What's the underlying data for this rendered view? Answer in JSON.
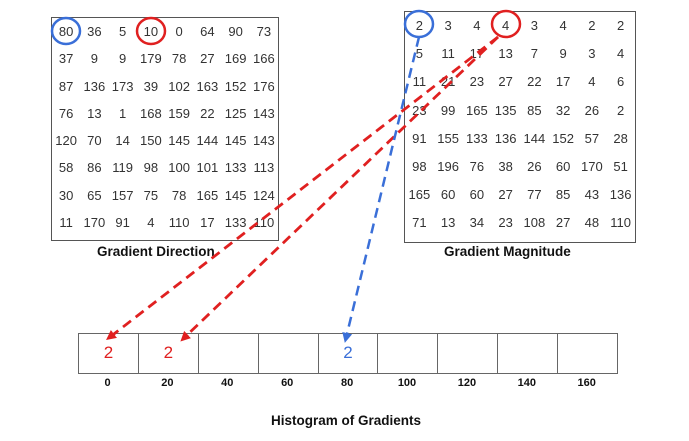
{
  "gradient_direction": {
    "caption": "Gradient Direction",
    "rows": [
      [
        "80",
        "36",
        "5",
        "10",
        "0",
        "64",
        "90",
        "73"
      ],
      [
        "37",
        "9",
        "9",
        "179",
        "78",
        "27",
        "169",
        "166"
      ],
      [
        "87",
        "136",
        "173",
        "39",
        "102",
        "163",
        "152",
        "176"
      ],
      [
        "76",
        "13",
        "1",
        "168",
        "159",
        "22",
        "125",
        "143"
      ],
      [
        "120",
        "70",
        "14",
        "150",
        "145",
        "144",
        "145",
        "143"
      ],
      [
        "58",
        "86",
        "119",
        "98",
        "100",
        "101",
        "133",
        "113"
      ],
      [
        "30",
        "65",
        "157",
        "75",
        "78",
        "165",
        "145",
        "124"
      ],
      [
        "11",
        "170",
        "91",
        "4",
        "110",
        "17",
        "133",
        "110"
      ]
    ]
  },
  "gradient_magnitude": {
    "caption": "Gradient Magnitude",
    "rows": [
      [
        "2",
        "3",
        "4",
        "4",
        "3",
        "4",
        "2",
        "2"
      ],
      [
        "5",
        "11",
        "17",
        "13",
        "7",
        "9",
        "3",
        "4"
      ],
      [
        "11",
        "21",
        "23",
        "27",
        "22",
        "17",
        "4",
        "6"
      ],
      [
        "23",
        "99",
        "165",
        "135",
        "85",
        "32",
        "26",
        "2"
      ],
      [
        "91",
        "155",
        "133",
        "136",
        "144",
        "152",
        "57",
        "28"
      ],
      [
        "98",
        "196",
        "76",
        "38",
        "26",
        "60",
        "170",
        "51"
      ],
      [
        "165",
        "60",
        "60",
        "27",
        "77",
        "85",
        "43",
        "136"
      ],
      [
        "71",
        "13",
        "34",
        "23",
        "108",
        "27",
        "48",
        "110"
      ]
    ]
  },
  "histogram": {
    "caption": "Histogram of Gradients",
    "bins": [
      "0",
      "20",
      "40",
      "60",
      "80",
      "100",
      "120",
      "140",
      "160"
    ],
    "values": [
      "2",
      "2",
      "",
      "",
      "2",
      "",
      "",
      "",
      ""
    ],
    "value_colors": [
      "#e02020",
      "#e02020",
      "",
      "",
      "#3a6fd8",
      "",
      "",
      "",
      ""
    ]
  },
  "colors": {
    "red": "#e02020",
    "blue": "#3a6fd8"
  }
}
